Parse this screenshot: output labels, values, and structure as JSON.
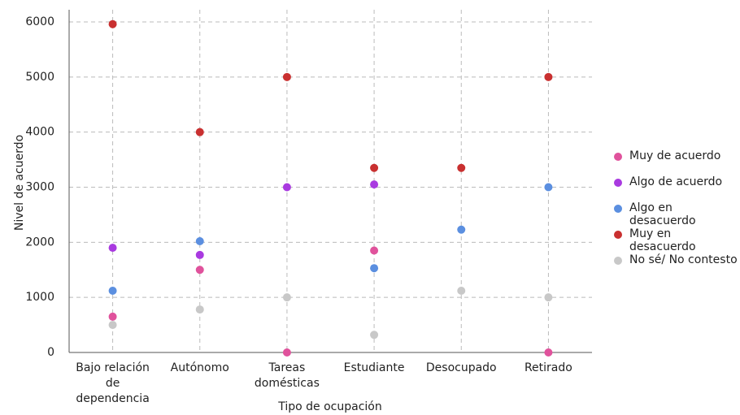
{
  "chart_data": {
    "type": "scatter",
    "x_label": "Tipo de ocupación",
    "y_label": "Nivel de acuerdo",
    "categories": [
      "Bajo relación de dependencia",
      "Autónomo",
      "Tareas domésticas",
      "Estudiante",
      "Desocupado",
      "Retirado"
    ],
    "series": [
      {
        "name": "Muy de acuerdo",
        "color": "#e0529c",
        "values": [
          650,
          1500,
          0,
          1850,
          null,
          0
        ]
      },
      {
        "name": "Algo de acuerdo",
        "color": "#a93ae0",
        "values": [
          1900,
          1770,
          3000,
          3050,
          null,
          null
        ]
      },
      {
        "name": "Algo en desacuerdo",
        "color": "#5b8fe0",
        "values": [
          1120,
          2020,
          null,
          1530,
          2230,
          3000
        ]
      },
      {
        "name": "Muy en desacuerdo",
        "color": "#c93030",
        "values": [
          5960,
          4000,
          5000,
          3350,
          3350,
          5000
        ]
      },
      {
        "name": "No sé/ No contesto",
        "color": "#c8c8c8",
        "values": [
          500,
          780,
          1000,
          320,
          1120,
          1000
        ]
      }
    ],
    "ylim": [
      0,
      6000
    ],
    "yticks": [
      0,
      1000,
      2000,
      3000,
      4000,
      5000,
      6000
    ],
    "grid": true
  }
}
